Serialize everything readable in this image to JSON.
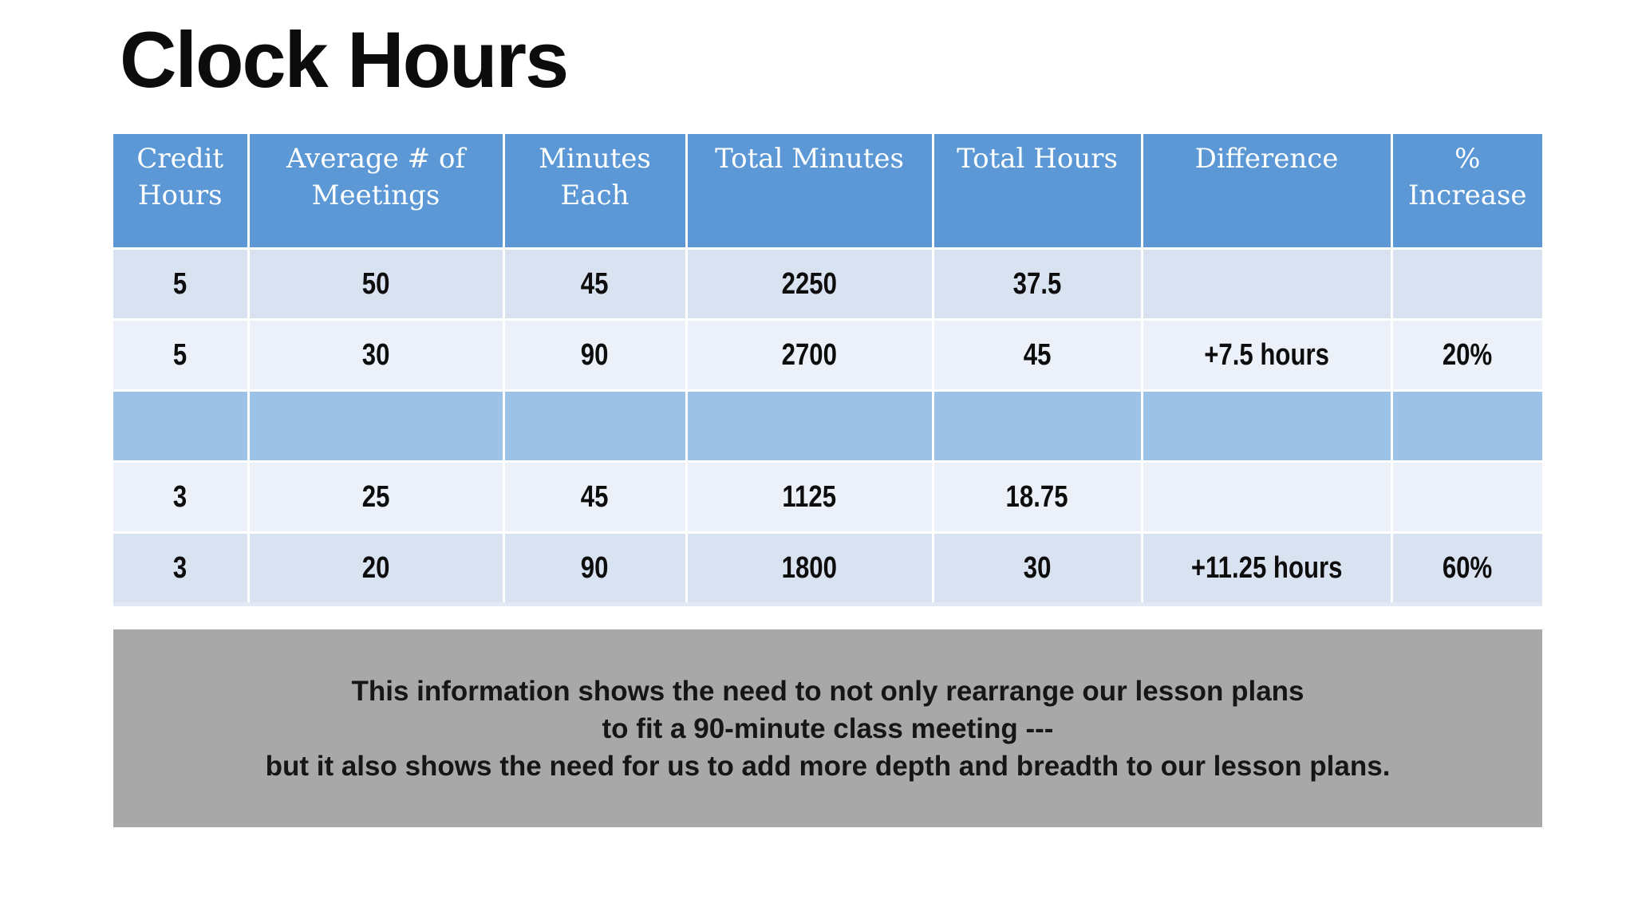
{
  "slide": {
    "title": "Clock Hours"
  },
  "colors": {
    "header_blue": "#5B98D5",
    "band_light": "#D9E2F0",
    "band_lighter": "#ECF0F8",
    "band_accent": "#9CC2E5",
    "note_gray": "#A8A8A8"
  },
  "table": {
    "columns": [
      "Credit\nHours",
      "Average # of\nMeetings",
      "Minutes\nEach",
      "Total Minutes",
      "Total Hours",
      "Difference",
      "%\nIncrease"
    ],
    "rows": [
      [
        "5",
        "50",
        "45",
        "2250",
        "37.5",
        "",
        ""
      ],
      [
        "5",
        "30",
        "90",
        "2700",
        "45",
        "+7.5 hours",
        "20%"
      ],
      [
        "",
        "",
        "",
        "",
        "",
        "",
        ""
      ],
      [
        "3",
        "25",
        "45",
        "1125",
        "18.75",
        "",
        ""
      ],
      [
        "3",
        "20",
        "90",
        "1800",
        "30",
        "+11.25 hours",
        "60%"
      ]
    ]
  },
  "note": {
    "lines": [
      "This information shows the need to not only rearrange our lesson plans",
      "to fit a 90-minute class meeting ---",
      "but it also shows the need for us to add more depth and breadth to our lesson plans."
    ]
  }
}
